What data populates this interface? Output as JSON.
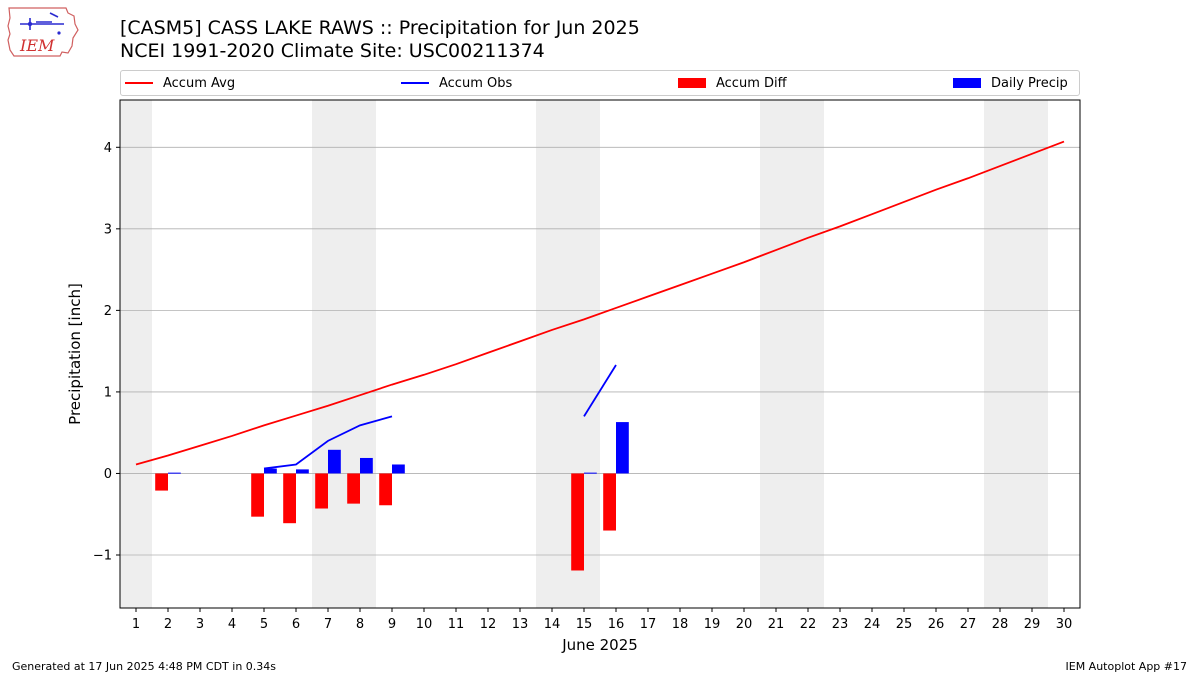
{
  "header": {
    "title": "[CASM5] CASS LAKE RAWS :: Precipitation for Jun 2025",
    "subtitle": "NCEI 1991-2020 Climate Site: USC00211374",
    "logo_text": "IEM"
  },
  "footer": {
    "left": "Generated at 17 Jun 2025 4:48 PM CDT in 0.34s",
    "right": "IEM Autoplot App #17"
  },
  "colors": {
    "accum_avg": "#ff0000",
    "accum_obs": "#0000ff",
    "accum_diff": "#ff0000",
    "daily_precip": "#0000ff",
    "weekend_band": "#eeeeee",
    "grid": "#b0b0b0"
  },
  "legend": {
    "position": "top",
    "items": [
      {
        "label": "Accum Avg",
        "kind": "line",
        "color": "#ff0000"
      },
      {
        "label": "Accum Obs",
        "kind": "line",
        "color": "#0000ff"
      },
      {
        "label": "Accum Diff",
        "kind": "bar",
        "color": "#ff0000"
      },
      {
        "label": "Daily Precip",
        "kind": "bar",
        "color": "#0000ff"
      }
    ]
  },
  "chart_data": {
    "type": "line",
    "xlabel": "June 2025",
    "ylabel": "Precipitation [inch]",
    "xlim": [
      0.5,
      30.5
    ],
    "ylim": [
      -1.65,
      4.58
    ],
    "grid": "horizontal",
    "x_ticks": [
      1,
      2,
      3,
      4,
      5,
      6,
      7,
      8,
      9,
      10,
      11,
      12,
      13,
      14,
      15,
      16,
      17,
      18,
      19,
      20,
      21,
      22,
      23,
      24,
      25,
      26,
      27,
      28,
      29,
      30
    ],
    "y_ticks": [
      -1,
      0,
      1,
      2,
      3,
      4
    ],
    "y_tick_labels": [
      "−1",
      "0",
      "1",
      "2",
      "3",
      "4"
    ],
    "weekend_days": [
      1,
      7,
      8,
      14,
      15,
      21,
      22,
      28,
      29
    ],
    "series": [
      {
        "name": "Accum Avg",
        "type": "line",
        "x": [
          1,
          2,
          3,
          4,
          5,
          6,
          7,
          8,
          9,
          10,
          11,
          12,
          13,
          14,
          15,
          16,
          17,
          18,
          19,
          20,
          21,
          22,
          23,
          24,
          25,
          26,
          27,
          28,
          29,
          30
        ],
        "values": [
          0.11,
          0.22,
          0.34,
          0.46,
          0.59,
          0.71,
          0.83,
          0.96,
          1.09,
          1.21,
          1.34,
          1.48,
          1.62,
          1.76,
          1.89,
          2.03,
          2.17,
          2.31,
          2.45,
          2.59,
          2.74,
          2.89,
          3.03,
          3.18,
          3.33,
          3.48,
          3.62,
          3.77,
          3.92,
          4.07
        ]
      },
      {
        "name": "Accum Obs",
        "type": "line",
        "segments": [
          {
            "x": [
              5,
              6,
              7,
              8,
              9
            ],
            "values": [
              0.06,
              0.11,
              0.4,
              0.59,
              0.7
            ]
          },
          {
            "x": [
              15,
              16
            ],
            "values": [
              0.7,
              1.33
            ]
          }
        ]
      },
      {
        "name": "Accum Diff",
        "type": "bar",
        "x": [
          2,
          5,
          6,
          7,
          8,
          9,
          15,
          16
        ],
        "values": [
          -0.21,
          -0.53,
          -0.61,
          -0.43,
          -0.37,
          -0.39,
          -1.19,
          -0.7
        ]
      },
      {
        "name": "Daily Precip",
        "type": "bar",
        "x": [
          2,
          5,
          6,
          7,
          8,
          9,
          15,
          16
        ],
        "values": [
          0.01,
          0.06,
          0.05,
          0.29,
          0.19,
          0.11,
          0.01,
          0.63
        ]
      }
    ]
  }
}
